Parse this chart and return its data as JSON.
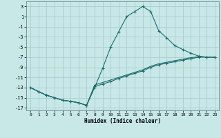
{
  "xlabel": "Humidex (Indice chaleur)",
  "xlim": [
    -0.5,
    23.5
  ],
  "ylim": [
    -17.5,
    4.0
  ],
  "xticks": [
    0,
    1,
    2,
    3,
    4,
    5,
    6,
    7,
    8,
    9,
    10,
    11,
    12,
    13,
    14,
    15,
    16,
    17,
    18,
    19,
    20,
    21,
    22,
    23
  ],
  "yticks": [
    3,
    1,
    -1,
    -3,
    -5,
    -7,
    -9,
    -11,
    -13,
    -15,
    -17
  ],
  "background_color": "#c8e8e8",
  "grid_color": "#aacccc",
  "line_color": "#1a6b6b",
  "series1": [
    [
      0,
      -13
    ],
    [
      1,
      -13.8
    ],
    [
      2,
      -14.5
    ],
    [
      3,
      -15.0
    ],
    [
      4,
      -15.5
    ],
    [
      5,
      -15.7
    ],
    [
      6,
      -16.0
    ],
    [
      7,
      -16.5
    ],
    [
      8,
      -13.0
    ],
    [
      9,
      -9.2
    ],
    [
      10,
      -5.0
    ],
    [
      11,
      -2.0
    ],
    [
      12,
      1.0
    ],
    [
      13,
      2.0
    ],
    [
      14,
      3.0
    ],
    [
      15,
      2.0
    ],
    [
      16,
      -1.8
    ],
    [
      17,
      -3.2
    ],
    [
      18,
      -4.7
    ],
    [
      19,
      -5.5
    ],
    [
      20,
      -6.2
    ],
    [
      21,
      -6.8
    ],
    [
      22,
      -7.0
    ],
    [
      23,
      -7.0
    ]
  ],
  "series2": [
    [
      0,
      -13
    ],
    [
      1,
      -13.8
    ],
    [
      2,
      -14.5
    ],
    [
      3,
      -15.0
    ],
    [
      4,
      -15.5
    ],
    [
      5,
      -15.7
    ],
    [
      6,
      -16.0
    ],
    [
      7,
      -16.5
    ],
    [
      8,
      -12.8
    ],
    [
      9,
      -12.3
    ],
    [
      10,
      -11.8
    ],
    [
      11,
      -11.2
    ],
    [
      12,
      -10.7
    ],
    [
      13,
      -10.2
    ],
    [
      14,
      -9.7
    ],
    [
      15,
      -9.0
    ],
    [
      16,
      -8.5
    ],
    [
      17,
      -8.2
    ],
    [
      18,
      -7.9
    ],
    [
      19,
      -7.6
    ],
    [
      20,
      -7.3
    ],
    [
      21,
      -7.0
    ],
    [
      22,
      -7.0
    ],
    [
      23,
      -7.0
    ]
  ],
  "series3": [
    [
      0,
      -13
    ],
    [
      1,
      -13.8
    ],
    [
      2,
      -14.5
    ],
    [
      3,
      -15.0
    ],
    [
      4,
      -15.5
    ],
    [
      5,
      -15.7
    ],
    [
      6,
      -16.0
    ],
    [
      7,
      -16.5
    ],
    [
      8,
      -12.5
    ],
    [
      9,
      -12.0
    ],
    [
      10,
      -11.5
    ],
    [
      11,
      -11.0
    ],
    [
      12,
      -10.5
    ],
    [
      13,
      -10.0
    ],
    [
      14,
      -9.5
    ],
    [
      15,
      -8.8
    ],
    [
      16,
      -8.3
    ],
    [
      17,
      -8.0
    ],
    [
      18,
      -7.7
    ],
    [
      19,
      -7.4
    ],
    [
      20,
      -7.1
    ],
    [
      21,
      -6.9
    ],
    [
      22,
      -7.0
    ],
    [
      23,
      -7.0
    ]
  ]
}
